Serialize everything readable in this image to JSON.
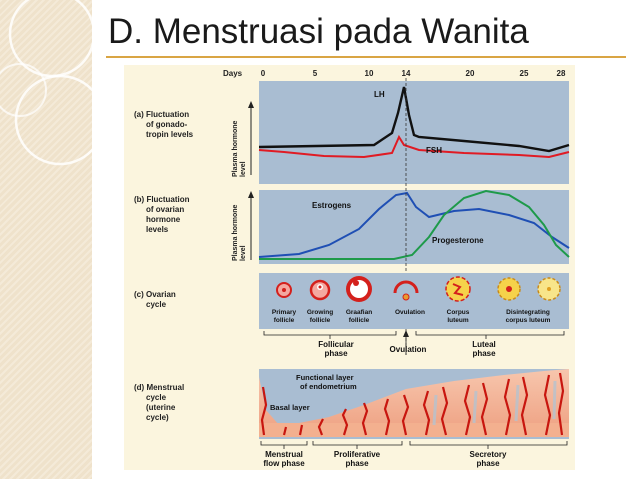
{
  "slide": {
    "title": "D. Menstruasi pada Wanita"
  },
  "axis": {
    "label": "Days",
    "ticks": [
      "0",
      "5",
      "10",
      "14",
      "20",
      "25",
      "28"
    ]
  },
  "panels": {
    "a": {
      "label_lines": [
        "(a) Fluctuation",
        "of gonado-",
        "tropin levels"
      ],
      "y_label_lines": [
        "Plasma hormone",
        "level"
      ],
      "series": [
        {
          "name": "LH",
          "color": "#111111"
        },
        {
          "name": "FSH",
          "color": "#e01b24"
        }
      ]
    },
    "b": {
      "label_lines": [
        "(b) Fluctuation",
        "of ovarian",
        "hormone",
        "levels"
      ],
      "y_label_lines": [
        "Plasma hormone",
        "level"
      ],
      "series": [
        {
          "name": "Estrogens",
          "color": "#1f4fb4"
        },
        {
          "name": "Progesterone",
          "color": "#1e9a4a"
        }
      ]
    },
    "c": {
      "label_lines": [
        "(c) Ovarian",
        "cycle"
      ],
      "stages": [
        [
          "Primary",
          "follicle"
        ],
        [
          "Growing",
          "follicle"
        ],
        [
          "Graafian",
          "follicle"
        ],
        [
          "Ovulation"
        ],
        [
          "Corpus",
          "luteum"
        ],
        [
          "Disintegrating",
          "corpus luteum"
        ]
      ],
      "phases": [
        [
          "Follicular",
          "phase"
        ],
        [
          "Ovulation"
        ],
        [
          "Luteal",
          "phase"
        ]
      ]
    },
    "d": {
      "label_lines": [
        "(d) Menstrual",
        "cycle",
        "(uterine",
        "cycle)"
      ],
      "annotation_functional": [
        "Functional layer",
        "of endometrium"
      ],
      "annotation_basal": "Basal layer",
      "phases": [
        [
          "Menstrual",
          "flow phase"
        ],
        [
          "Proliferative",
          "phase"
        ],
        [
          "Secretory",
          "phase"
        ]
      ]
    }
  },
  "colors": {
    "panel_bg": "#a9bdd2",
    "figure_bg": "#fbf5de",
    "accent_rule": "#d9a544",
    "tissue_pink": "#f2a98a",
    "tissue_red": "#c8160f"
  }
}
